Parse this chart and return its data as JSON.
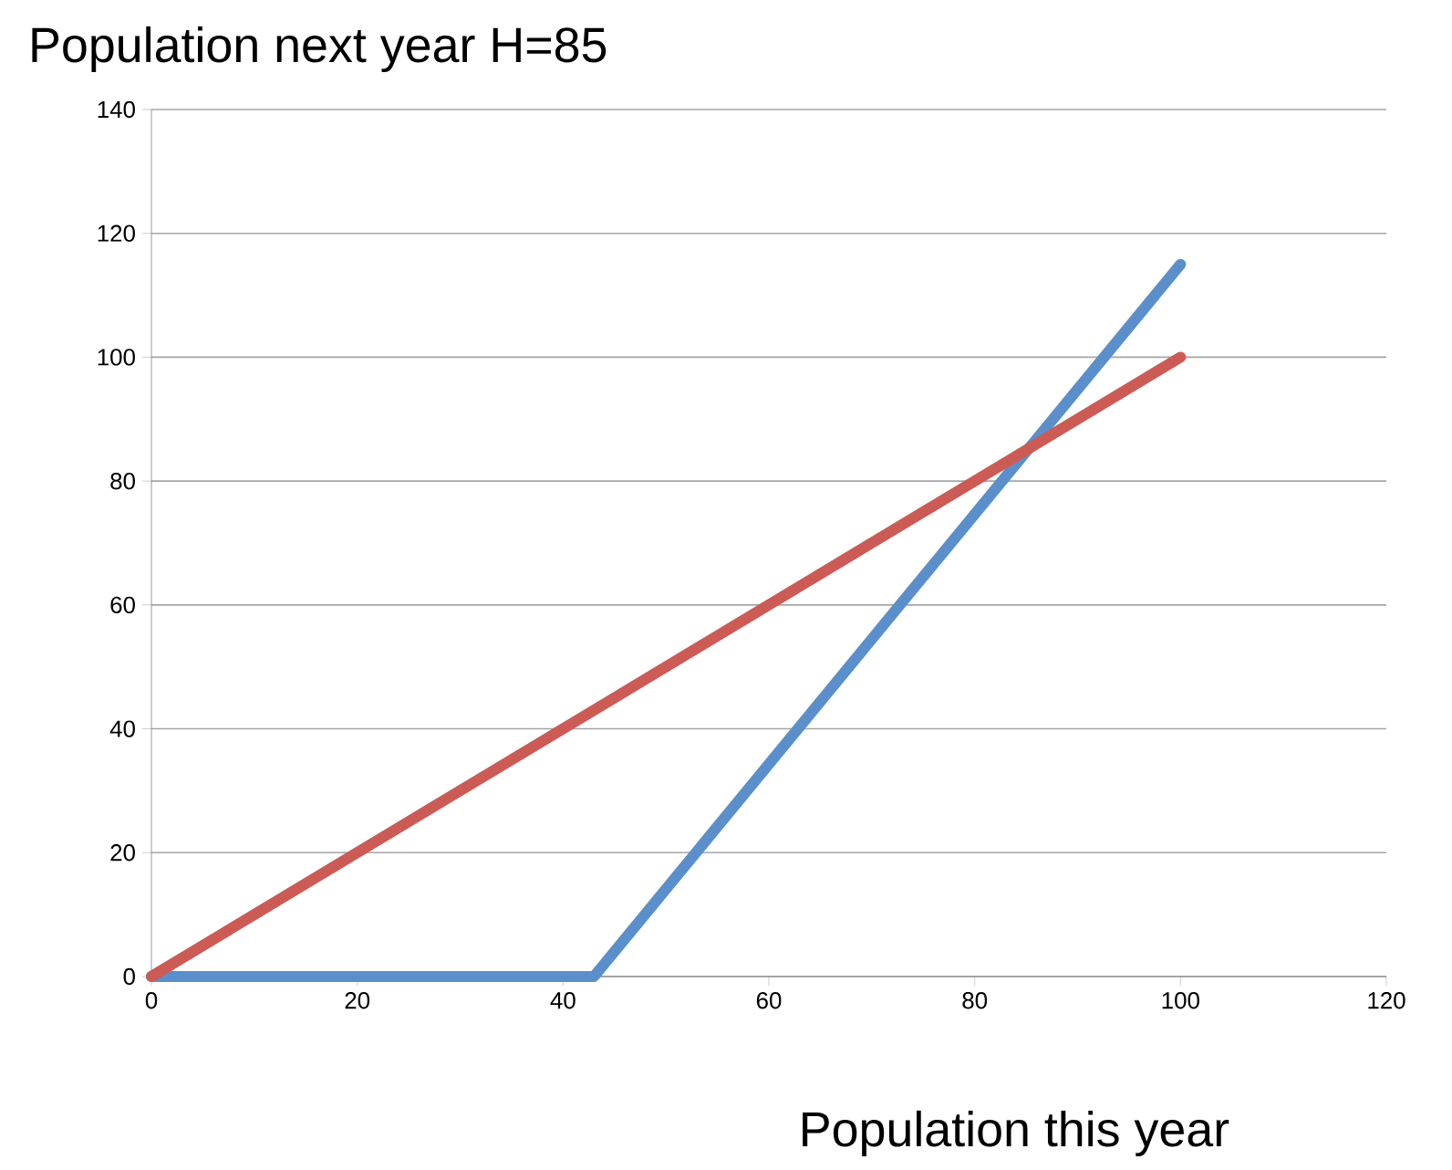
{
  "chart_data": {
    "type": "line",
    "title": "Population next year H=85",
    "xlabel": "Population this year",
    "series": [
      {
        "color": "#5b8fcb",
        "x": [
          0,
          43,
          100
        ],
        "values": [
          0,
          0,
          115
        ]
      },
      {
        "color": "#cc5b55",
        "x": [
          0,
          100
        ],
        "values": [
          0,
          100
        ]
      }
    ],
    "xlim": [
      0,
      120
    ],
    "ylim": [
      0,
      140
    ],
    "xticks": [
      0,
      20,
      40,
      60,
      80,
      100,
      120
    ],
    "yticks": [
      0,
      20,
      40,
      60,
      80,
      100,
      120,
      140
    ],
    "grid": "y"
  }
}
